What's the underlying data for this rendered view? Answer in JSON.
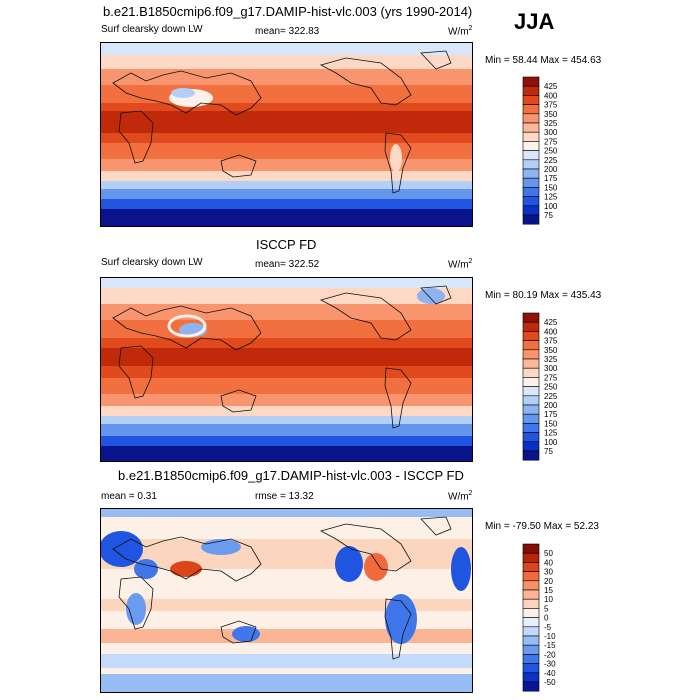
{
  "season": "JJA",
  "colors": {
    "abs_scale": [
      "#08138c",
      "#0a2fc2",
      "#1f55e0",
      "#3f76ea",
      "#6596ee",
      "#8db3f2",
      "#b4cff7",
      "#d9e7fb",
      "#fdf2ea",
      "#fdd8c4",
      "#fcb898",
      "#f9956e",
      "#f2703f",
      "#e04a1d",
      "#c02a0b",
      "#8f1207"
    ],
    "diff_scale": [
      "#0a1496",
      "#0c33c7",
      "#1f55e0",
      "#3f76ea",
      "#6a9bef",
      "#98bdf4",
      "#c3dafa",
      "#e6f0fd",
      "#fdf0e6",
      "#fcd5bf",
      "#fbb595",
      "#f8916a",
      "#f06a3c",
      "#dc441a",
      "#b52508",
      "#820e05"
    ]
  },
  "panels": [
    {
      "title": "b.e21.B1850cmip6.f09_g17.DAMIP-hist-vlc.003 (yrs 1990-2014)",
      "left_label": "Surf clearsky down LW",
      "center_label": "mean= 322.83",
      "units": "W/m",
      "units_exp": "2",
      "minmax": "Min =  58.44 Max = 454.63",
      "chart_data": {
        "type": "heatmap",
        "field": "Surf clearsky down LW",
        "mean": 322.83,
        "min": 58.44,
        "max": 454.63,
        "units": "W/m2",
        "colorbar_levels": [
          425,
          400,
          375,
          350,
          325,
          300,
          275,
          250,
          225,
          200,
          175,
          150,
          125,
          100,
          75
        ]
      }
    },
    {
      "title": "ISCCP FD",
      "left_label": "Surf clearsky down LW",
      "center_label": "mean= 322.52",
      "units": "W/m",
      "units_exp": "2",
      "minmax": "Min =  80.19 Max = 435.43",
      "chart_data": {
        "type": "heatmap",
        "field": "Surf clearsky down LW",
        "mean": 322.52,
        "min": 80.19,
        "max": 435.43,
        "units": "W/m2",
        "colorbar_levels": [
          425,
          400,
          375,
          350,
          325,
          300,
          275,
          250,
          225,
          200,
          175,
          150,
          125,
          100,
          75
        ]
      }
    },
    {
      "title": "b.e21.B1850cmip6.f09_g17.DAMIP-hist-vlc.003 - ISCCP FD",
      "left_label": "mean =   0.31",
      "center_label": "rmse =  13.32",
      "units": "W/m",
      "units_exp": "2",
      "minmax": "Min = -79.50 Max =  52.23",
      "chart_data": {
        "type": "heatmap",
        "field": "difference",
        "mean": 0.31,
        "rmse": 13.32,
        "min": -79.5,
        "max": 52.23,
        "units": "W/m2",
        "colorbar_levels": [
          50,
          40,
          30,
          20,
          15,
          10,
          5,
          0,
          -5,
          -10,
          -15,
          -20,
          -30,
          -40,
          -50
        ]
      }
    }
  ]
}
